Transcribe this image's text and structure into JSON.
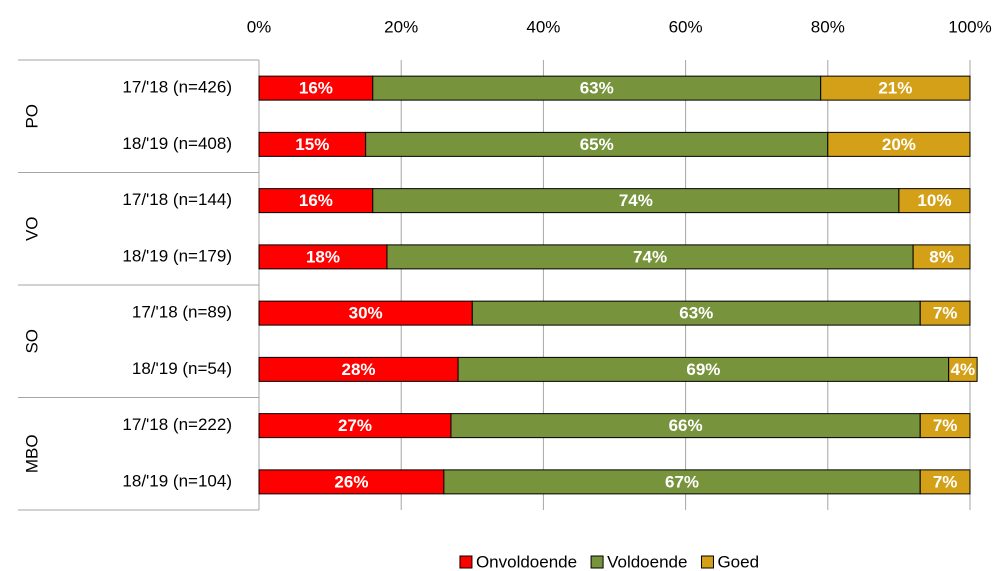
{
  "chart_data": {
    "type": "stacked_barh",
    "group_labels": [
      "PO",
      "VO",
      "SO",
      "MBO"
    ],
    "categories": [
      "17/'18 (n=426)",
      "18/'19 (n=408)",
      "17/'18 (n=144)",
      "18/'19 (n=179)",
      "17/'18 (n=89)",
      "18/'19 (n=54)",
      "17/'18 (n=222)",
      "18/'19 (n=104)"
    ],
    "series": [
      {
        "name": "Onvoldoende",
        "color": "#ff0000",
        "values": [
          16,
          15,
          16,
          18,
          30,
          28,
          27,
          26
        ],
        "value_labels": [
          "16%",
          "15%",
          "16%",
          "18%",
          "30%",
          "28%",
          "27%",
          "26%"
        ]
      },
      {
        "name": "Voldoende",
        "color": "#77933c",
        "values": [
          63,
          65,
          74,
          74,
          63,
          69,
          66,
          67
        ],
        "value_labels": [
          "63%",
          "65%",
          "74%",
          "74%",
          "63%",
          "69%",
          "66%",
          "67%"
        ]
      },
      {
        "name": "Goed",
        "color": "#d4a017",
        "values": [
          21,
          20,
          10,
          8,
          7,
          4,
          7,
          7
        ],
        "value_labels": [
          "21%",
          "20%",
          "10%",
          "8%",
          "7%",
          "4%",
          "7%",
          "7%"
        ]
      }
    ],
    "xlim": [
      0,
      100
    ],
    "xticks": [
      {
        "value": 0,
        "label": "0%"
      },
      {
        "value": 20,
        "label": "20%"
      },
      {
        "value": 40,
        "label": "40%"
      },
      {
        "value": 60,
        "label": "60%"
      },
      {
        "value": 80,
        "label": "80%"
      },
      {
        "value": 100,
        "label": "100%"
      }
    ],
    "grid": true,
    "legend": "bottom"
  }
}
